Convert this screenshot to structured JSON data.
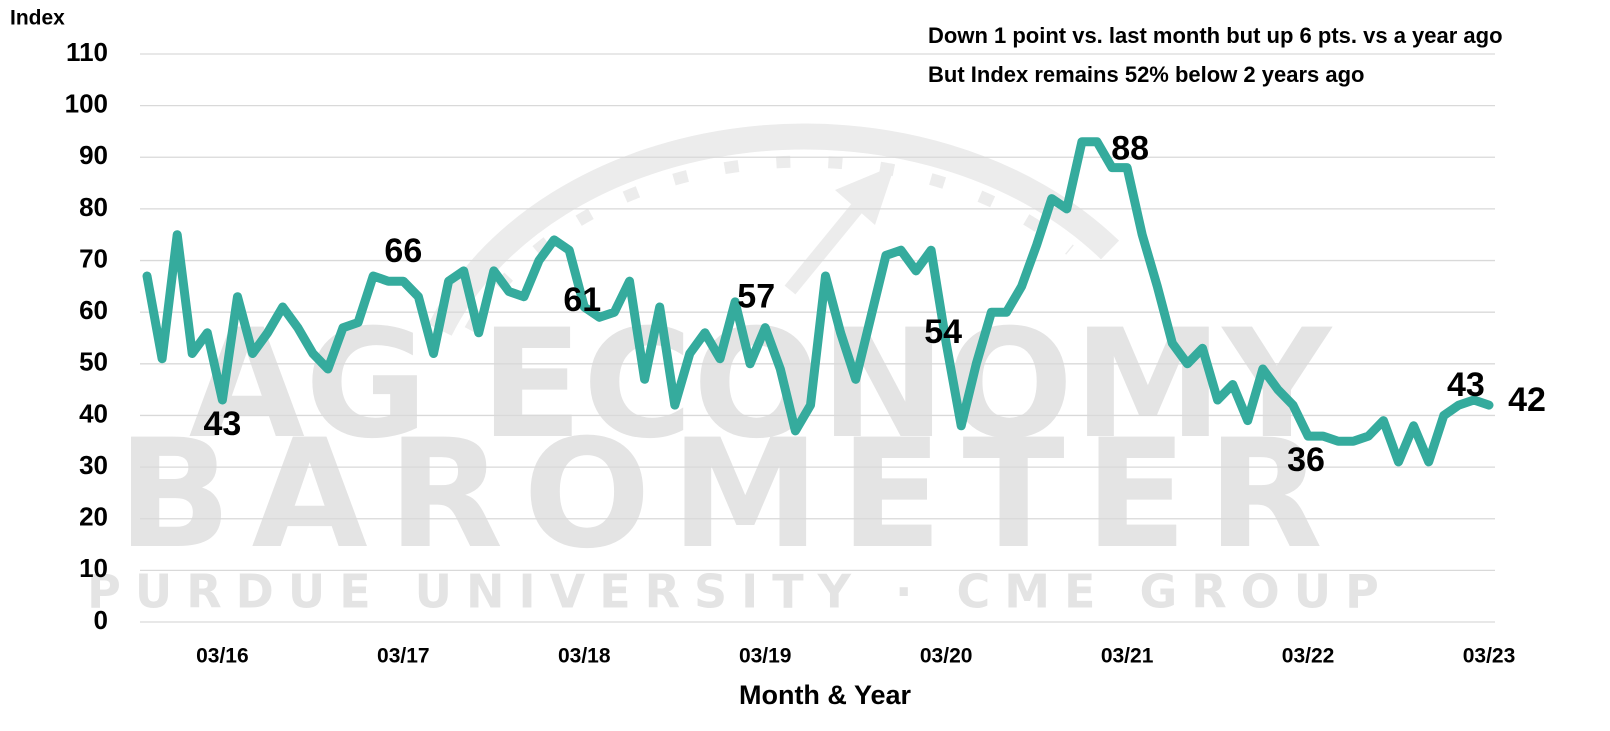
{
  "chart_data": {
    "type": "line",
    "y_axis_label": "Index",
    "x_axis_label": "Month & Year",
    "annotations": [
      "Down 1 point vs. last month but up 6 pts. vs a year ago",
      "But Index remains 52% below 2 years ago"
    ],
    "watermark": [
      "AG ECONOMY",
      "BAROMETER",
      "PURDUE UNIVERSITY · CME GROUP"
    ],
    "categories": [
      null,
      null,
      null,
      null,
      null,
      "03/16",
      null,
      null,
      null,
      null,
      null,
      null,
      null,
      null,
      null,
      null,
      null,
      "03/17",
      null,
      null,
      null,
      null,
      null,
      null,
      null,
      null,
      null,
      null,
      null,
      "03/18",
      null,
      null,
      null,
      null,
      null,
      null,
      null,
      null,
      null,
      null,
      null,
      "03/19",
      null,
      null,
      null,
      null,
      null,
      null,
      null,
      null,
      null,
      null,
      null,
      "03/20",
      null,
      null,
      null,
      null,
      null,
      null,
      null,
      null,
      null,
      null,
      null,
      "03/21",
      null,
      null,
      null,
      null,
      null,
      null,
      null,
      null,
      null,
      null,
      null,
      "03/22",
      null,
      null,
      null,
      null,
      null,
      null,
      null,
      null,
      null,
      null,
      null,
      "03/23"
    ],
    "series": [
      {
        "name": "Index",
        "color": "#35ab9d",
        "values": [
          67,
          51,
          75,
          52,
          56,
          43,
          63,
          52,
          56,
          61,
          57,
          52,
          49,
          57,
          58,
          67,
          66,
          66,
          63,
          52,
          66,
          68,
          56,
          68,
          64,
          63,
          70,
          74,
          72,
          61,
          59,
          60,
          66,
          47,
          61,
          42,
          52,
          56,
          51,
          62,
          50,
          57,
          49,
          37,
          42,
          67,
          56,
          47,
          59,
          71,
          72,
          68,
          72,
          54,
          38,
          50,
          60,
          60,
          65,
          73,
          82,
          80,
          93,
          93,
          88,
          88,
          75,
          65,
          54,
          50,
          53,
          43,
          46,
          39,
          49,
          45,
          42,
          36,
          36,
          35,
          35,
          36,
          39,
          31,
          38,
          31,
          40,
          42,
          43,
          42
        ],
        "value_labels": [
          null,
          null,
          null,
          null,
          null,
          "43",
          null,
          null,
          null,
          null,
          null,
          null,
          null,
          null,
          null,
          null,
          null,
          "66",
          null,
          null,
          null,
          null,
          null,
          null,
          null,
          null,
          null,
          null,
          null,
          "61",
          null,
          null,
          null,
          null,
          null,
          null,
          null,
          null,
          null,
          null,
          null,
          "57",
          null,
          null,
          null,
          null,
          null,
          null,
          null,
          null,
          null,
          null,
          null,
          "54",
          null,
          null,
          null,
          null,
          null,
          null,
          null,
          null,
          null,
          null,
          null,
          "88",
          null,
          null,
          null,
          null,
          null,
          null,
          null,
          null,
          null,
          null,
          null,
          "36",
          null,
          null,
          null,
          null,
          null,
          null,
          null,
          null,
          null,
          null,
          "43",
          "42"
        ]
      }
    ],
    "ylim": [
      0,
      110
    ],
    "yticks": [
      0,
      10,
      20,
      30,
      40,
      50,
      60,
      70,
      80,
      90,
      100,
      110
    ],
    "grid": true
  }
}
